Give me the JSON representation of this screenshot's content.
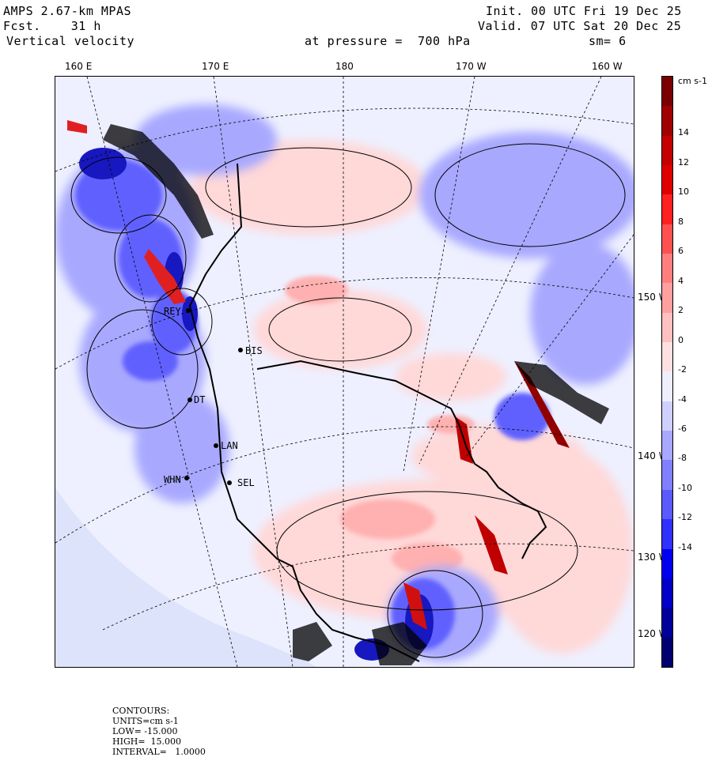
{
  "header": {
    "model": "AMPS 2.67-km MPAS",
    "fcst": "Fcst.    31 h",
    "field": "Vertical velocity",
    "pressure": "at pressure =  700 hPa",
    "init": "Init. 00 UTC Fri 19 Dec 25",
    "valid": "Valid. 07 UTC Sat 20 Dec 25",
    "smooth": "sm= 6"
  },
  "lon_labels": [
    "160 E",
    "170 E",
    "180",
    "170 W",
    "160 W"
  ],
  "lat_labels": [
    "150 W",
    "140 W",
    "130 W",
    "120 W"
  ],
  "stations": [
    "BIS",
    "LAN",
    "SEL",
    "WHN",
    "REY",
    "DT"
  ],
  "colorbar": {
    "units": "cm s-1",
    "ticks": [
      "14",
      "12",
      "10",
      "8",
      "6",
      "4",
      "2",
      "0",
      "-2",
      "-4",
      "-6",
      "-8",
      "-10",
      "-12",
      "-14"
    ],
    "colors": [
      "#7a0000",
      "#a00000",
      "#c40000",
      "#e00000",
      "#ff2020",
      "#ff5050",
      "#ff7f7f",
      "#ffa0a0",
      "#ffc0c0",
      "#ffe0e0",
      "#eeeeff",
      "#d0d0ff",
      "#a8a8ff",
      "#8080ff",
      "#5a5aff",
      "#3030ff",
      "#0000f0",
      "#0000c8",
      "#00009a",
      "#00006e"
    ]
  },
  "footer": {
    "contours": "CONTOURS:",
    "units": "UNITS=cm s-1",
    "low": "LOW= -15.000",
    "high": "HIGH=  15.000",
    "interval": "INTERVAL=   1.0000"
  }
}
